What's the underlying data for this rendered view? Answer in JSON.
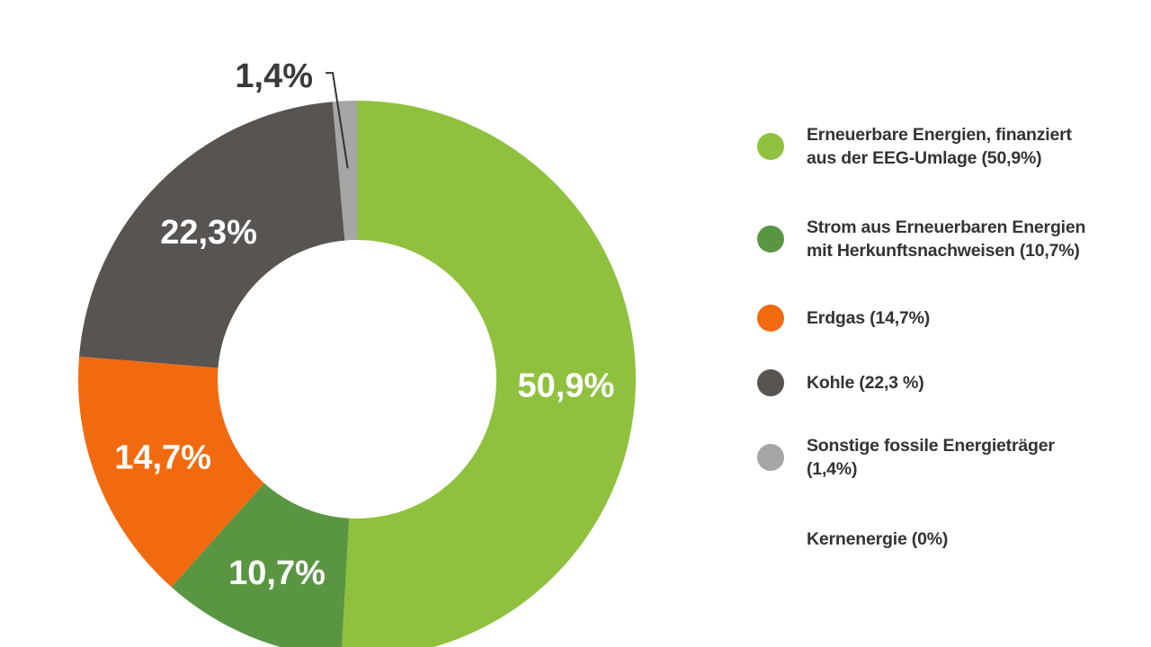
{
  "chart_data": {
    "type": "pie",
    "variant": "donut",
    "title": "",
    "slices": [
      {
        "label": "Erneuerbare Energien, finanziert\naus der EEG-Umlage (50,9%)",
        "value": 50.9,
        "display": "50,9%",
        "color": "#8fc13e"
      },
      {
        "label": "Strom aus Erneuerbaren Energien\nmit Herkunftsnachweisen (10,7%)",
        "value": 10.7,
        "display": "10,7%",
        "color": "#5a9642"
      },
      {
        "label": "Erdgas (14,7%)",
        "value": 14.7,
        "display": "14,7%",
        "color": "#f26a0f"
      },
      {
        "label": "Kohle (22,3 %)",
        "value": 22.3,
        "display": "22,3%",
        "color": "#575451"
      },
      {
        "label": "Sonstige fossile Energieträger\n(1,4%)",
        "value": 1.4,
        "display": "1,4%",
        "color": "#a6a6a6"
      },
      {
        "label": "Kernenergie (0%)",
        "value": 0,
        "display": "",
        "color": "#ffffff"
      }
    ],
    "legend_position": "right"
  }
}
